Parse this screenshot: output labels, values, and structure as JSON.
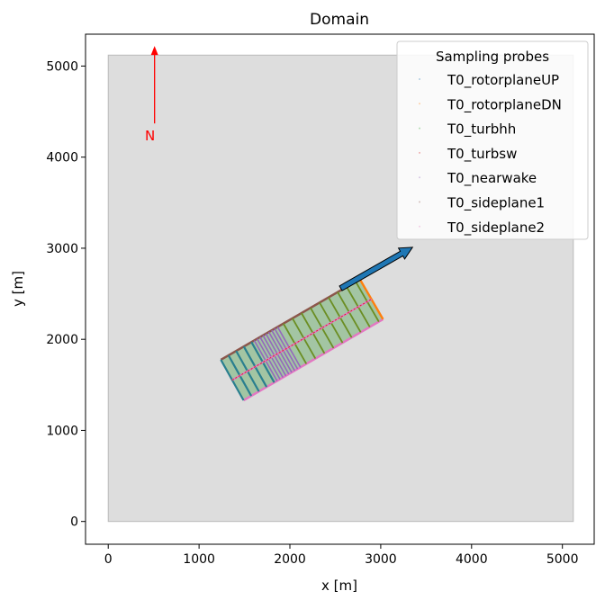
{
  "chart_data": {
    "type": "scatter",
    "title": "Domain",
    "xlabel": "x [m]",
    "ylabel": "y [m]",
    "xlim": [
      -250,
      5350
    ],
    "ylim": [
      -250,
      5350
    ],
    "xticks": [
      0,
      1000,
      2000,
      3000,
      4000,
      5000
    ],
    "yticks": [
      0,
      1000,
      2000,
      3000,
      4000,
      5000
    ],
    "grid": false,
    "domain_box": {
      "x": [
        0,
        5120
      ],
      "y": [
        0,
        5120
      ],
      "color": "#dddddd"
    },
    "north_arrow": {
      "label": "N",
      "x": 510,
      "y_start": 4370,
      "y_end": 5220,
      "color": "#ff0000"
    },
    "wind_arrow": {
      "from": [
        2560,
        2560
      ],
      "to": [
        3350,
        3010
      ],
      "color": "#1f77b4"
    },
    "sampling_region": {
      "upstream_corner_left": [
        1240,
        1775
      ],
      "upstream_corner_right": [
        1490,
        1330
      ],
      "downstream_corner_left": [
        2770,
        2660
      ],
      "downstream_corner_right": [
        3025,
        2220
      ],
      "fill_color": "#8fbc8f"
    },
    "legend": {
      "title": "Sampling probes",
      "position": "upper right",
      "entries": [
        {
          "name": "T0_rotorplaneUP",
          "color": "#1f77b4"
        },
        {
          "name": "T0_rotorplaneDN",
          "color": "#ff7f0e"
        },
        {
          "name": "T0_turbhh",
          "color": "#2ca02c"
        },
        {
          "name": "T0_turbsw",
          "color": "#d62728"
        },
        {
          "name": "T0_nearwake",
          "color": "#9467bd"
        },
        {
          "name": "T0_sideplane1",
          "color": "#8c564b"
        },
        {
          "name": "T0_sideplane2",
          "color": "#e377c2"
        }
      ]
    }
  }
}
